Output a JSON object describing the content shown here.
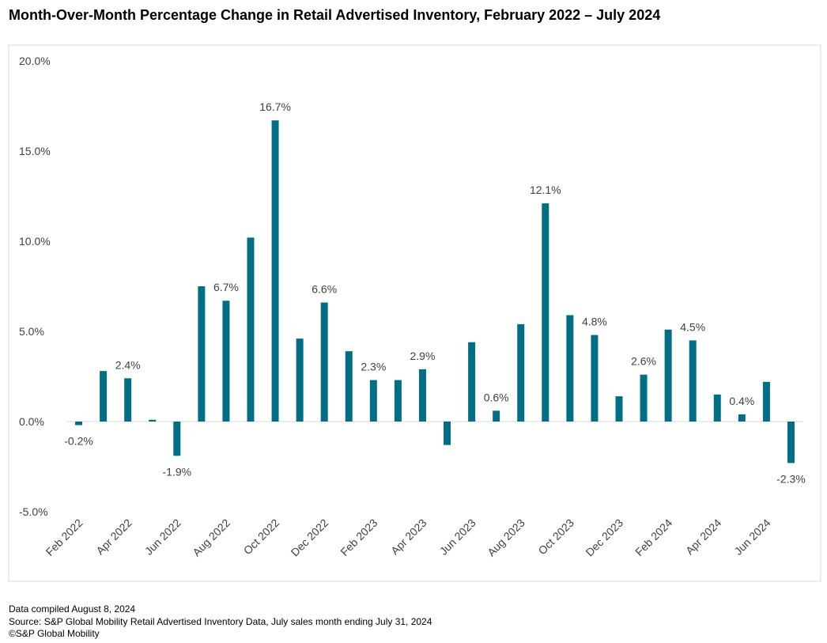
{
  "chart_data": {
    "type": "bar",
    "title": "Month-Over-Month Percentage Change in Retail Advertised Inventory, February 2022 – July 2024",
    "notes": [
      "Data compiled August 8, 2024",
      "Source: S&P Global Mobility Retail Advertised Inventory Data, July sales month ending July 31, 2024",
      "©S&P Global Mobility"
    ],
    "categories": [
      "Feb 2022",
      null,
      "Apr 2022",
      null,
      "Jun 2022",
      null,
      "Aug 2022",
      null,
      "Oct 2022",
      null,
      "Dec 2022",
      null,
      "Feb 2023",
      null,
      "Apr 2023",
      null,
      "Jun 2023",
      null,
      "Aug 2023",
      null,
      "Oct 2023",
      null,
      "Dec 2023",
      null,
      "Feb 2024",
      null,
      "Apr 2024",
      null,
      "Jun 2024",
      null
    ],
    "values": [
      -0.2,
      2.8,
      2.4,
      0.1,
      -1.9,
      7.5,
      6.7,
      10.2,
      16.7,
      4.6,
      6.6,
      3.9,
      2.3,
      2.3,
      2.9,
      -1.3,
      4.4,
      0.6,
      5.4,
      12.1,
      5.9,
      4.8,
      1.4,
      2.6,
      5.1,
      4.5,
      1.5,
      0.4,
      2.2,
      -2.3
    ],
    "value_labels": [
      "-0.2%",
      null,
      "2.4%",
      null,
      "-1.9%",
      null,
      "6.7%",
      null,
      "16.7%",
      null,
      "6.6%",
      null,
      "2.3%",
      null,
      "2.9%",
      null,
      null,
      "0.6%",
      null,
      "12.1%",
      null,
      "4.8%",
      null,
      "2.6%",
      null,
      "4.5%",
      null,
      "0.4%",
      null,
      "-2.3%"
    ],
    "color": "#006f86",
    "ylim": [
      -5,
      20
    ],
    "yticks": [
      {
        "value": -5,
        "label": "-5.0%"
      },
      {
        "value": 0,
        "label": "0.0%"
      },
      {
        "value": 5,
        "label": "5.0%"
      },
      {
        "value": 10,
        "label": "10.0%"
      },
      {
        "value": 15,
        "label": "15.0%"
      },
      {
        "value": 20,
        "label": "20.0%"
      }
    ],
    "grid": false
  }
}
